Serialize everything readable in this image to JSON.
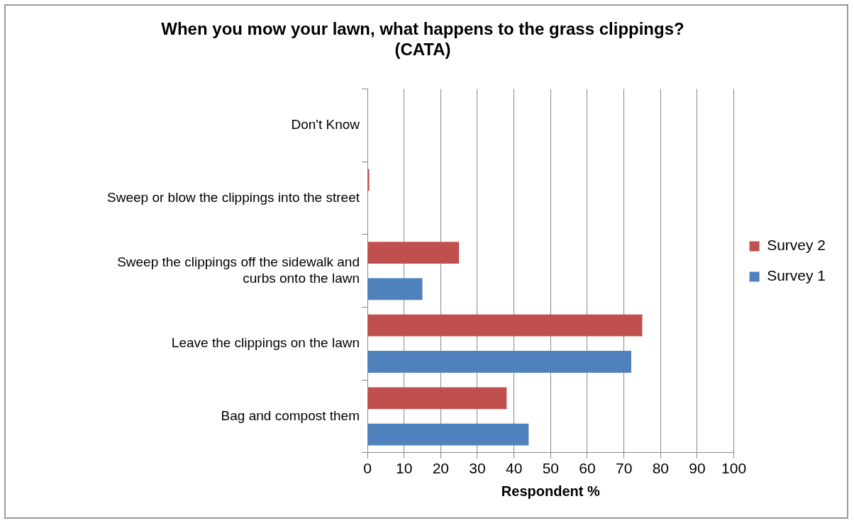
{
  "chart_data": {
    "type": "bar",
    "orientation": "horizontal",
    "title": "When you mow your lawn, what happens to the grass clippings?\n(CATA)",
    "xlabel": "Respondent %",
    "categories": [
      "Don't Know",
      "Sweep or blow the clippings into the street",
      "Sweep the clippings off the sidewalk and curbs onto the lawn",
      "Leave the clippings on the lawn",
      "Bag and compost them"
    ],
    "series": [
      {
        "name": "Survey 2",
        "color": "#c0504d",
        "values": [
          0,
          0.5,
          25,
          75,
          38
        ]
      },
      {
        "name": "Survey 1",
        "color": "#4f81bd",
        "values": [
          0,
          0,
          15,
          72,
          44
        ]
      }
    ],
    "xlim": [
      0,
      100
    ],
    "xticks": [
      0,
      10,
      20,
      30,
      40,
      50,
      60,
      70,
      80,
      90,
      100
    ],
    "grid": "x",
    "legend": "right"
  }
}
